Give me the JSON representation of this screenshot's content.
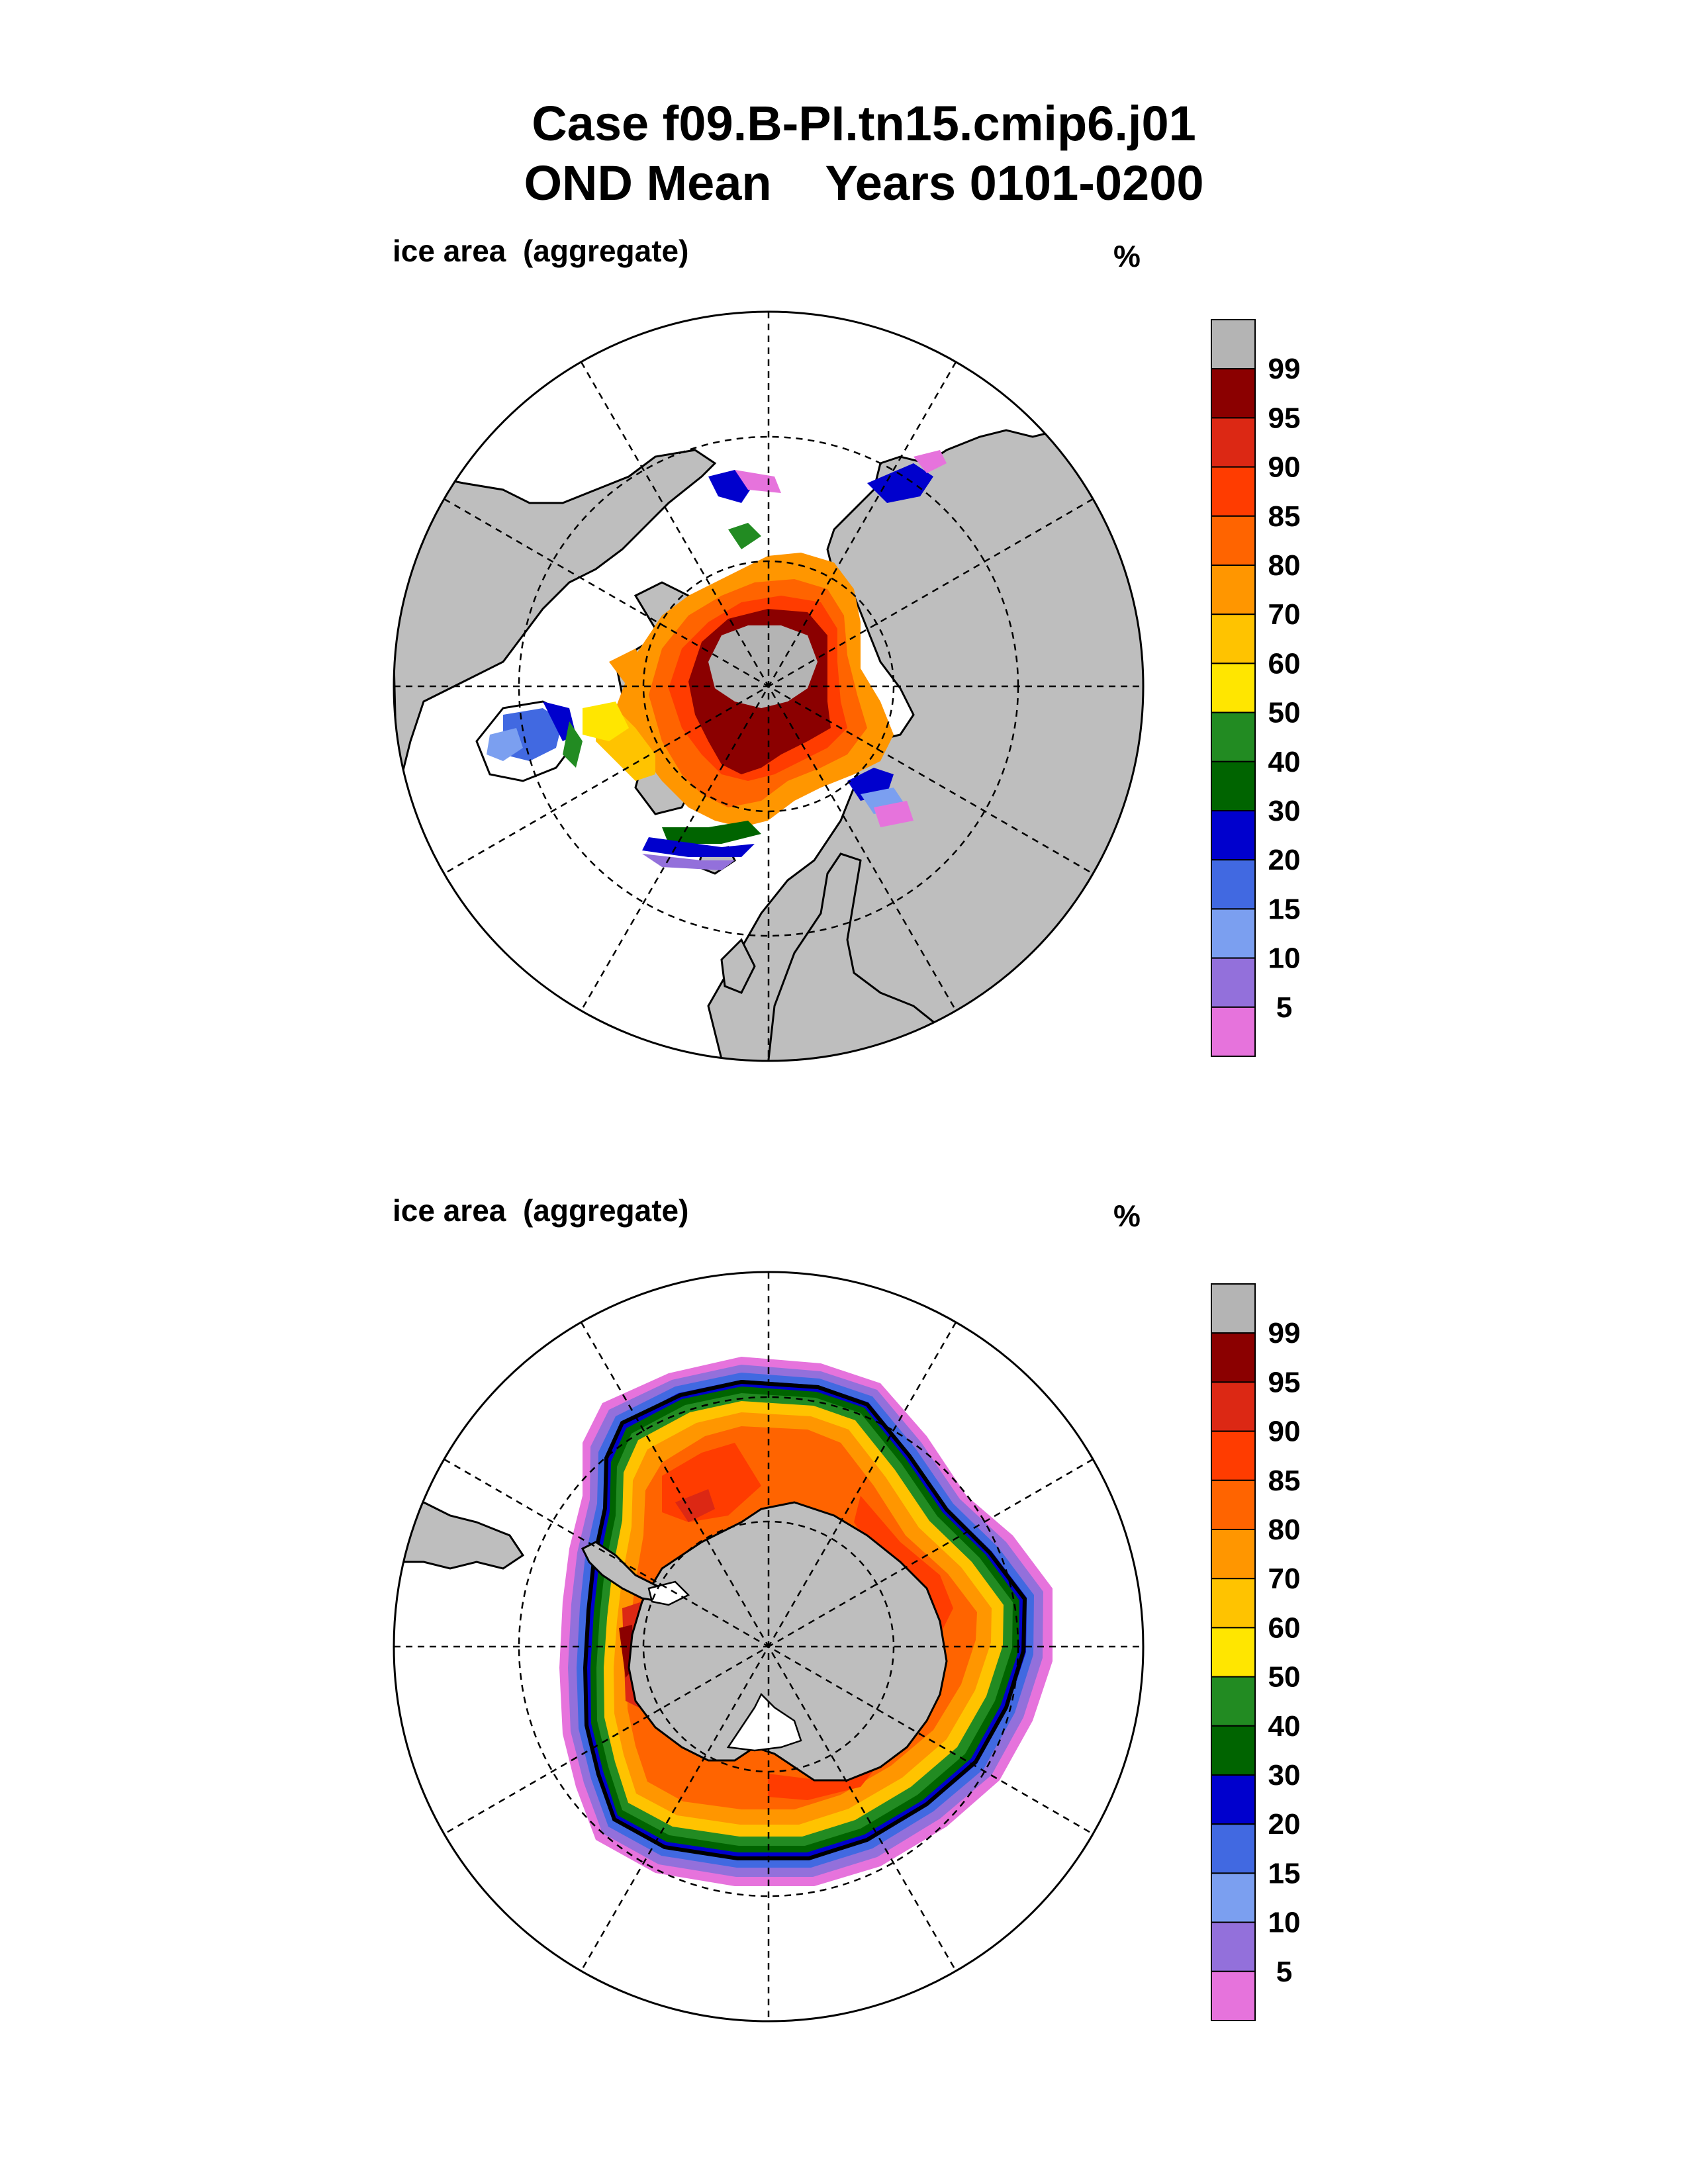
{
  "title": {
    "line1": "Case f09.B-PI.tn15.cmip6.j01",
    "line2": "OND Mean    Years 0101-0200"
  },
  "panels": [
    {
      "id": "nh",
      "hemisphere": "north",
      "label": "ice area  (aggregate)",
      "units": "%"
    },
    {
      "id": "sh",
      "hemisphere": "south",
      "label": "ice area  (aggregate)",
      "units": "%"
    }
  ],
  "colorbar": {
    "levels": [
      "99",
      "95",
      "90",
      "85",
      "80",
      "70",
      "60",
      "50",
      "40",
      "30",
      "20",
      "15",
      "10",
      "5"
    ],
    "colors": [
      "#b4b4b4",
      "#8b0000",
      "#dc2814",
      "#ff3c00",
      "#ff6400",
      "#ff9600",
      "#ffc300",
      "#ffe600",
      "#228b22",
      "#006400",
      "#0000cd",
      "#4169e1",
      "#7b9ff0",
      "#9370db",
      "#e673dc"
    ]
  },
  "map_colors": {
    "land": "#bebebe",
    "ocean": "#ffffff"
  }
}
